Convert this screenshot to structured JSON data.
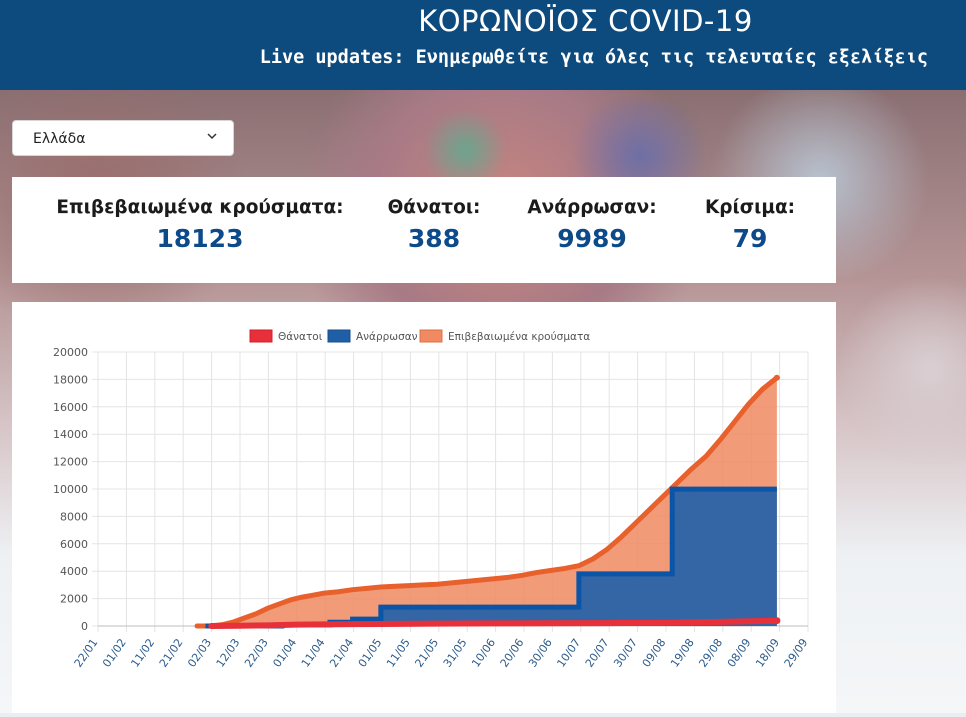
{
  "header": {
    "title": "ΚΟΡΩΝΟΪΟΣ COVID-19",
    "subtitle": "Live updates: Ενημερωθείτε για όλες τις τελευταίες εξελίξεις"
  },
  "country_select": {
    "value": "Ελλάδα"
  },
  "stats": [
    {
      "label": "Επιβεβαιωμένα κρούσματα:",
      "value": "18123"
    },
    {
      "label": "Θάνατοι:",
      "value": "388"
    },
    {
      "label": "Ανάρρωσαν:",
      "value": "9989"
    },
    {
      "label": "Κρίσιμα:",
      "value": "79"
    }
  ],
  "colors": {
    "header_bg": "#0d4a7d",
    "deaths": "#e8303a",
    "recovered": "#1f5fa8",
    "confirmed": "#f08a62",
    "confirmed_line": "#e8602c"
  },
  "chart_data": {
    "type": "area",
    "legend": [
      "Θάνατοι",
      "Ανάρρωσαν",
      "Επιβεβαιωμένα κρούσματα"
    ],
    "legend_position": "top-center",
    "ylim": [
      0,
      20000
    ],
    "yticks": [
      "0",
      "2000",
      "4000",
      "6000",
      "8000",
      "10000",
      "12000",
      "14000",
      "16000",
      "18000",
      "20000"
    ],
    "x_ticks": [
      "22/01",
      "01/02",
      "11/02",
      "21/02",
      "02/03",
      "12/03",
      "22/03",
      "01/04",
      "11/04",
      "21/04",
      "01/05",
      "11/05",
      "21/05",
      "31/05",
      "10/06",
      "20/06",
      "30/06",
      "10/07",
      "20/07",
      "30/07",
      "09/08",
      "19/08",
      "29/08",
      "08/09",
      "18/09",
      "29/09"
    ],
    "x_range_days": [
      0,
      251
    ],
    "series": [
      {
        "name": "Επιβεβαιωμένα κρούσματα",
        "points": [
          [
            0,
            0
          ],
          [
            35,
            0
          ],
          [
            40,
            0
          ],
          [
            44,
            100
          ],
          [
            48,
            300
          ],
          [
            52,
            600
          ],
          [
            56,
            900
          ],
          [
            60,
            1300
          ],
          [
            64,
            1600
          ],
          [
            68,
            1900
          ],
          [
            72,
            2100
          ],
          [
            76,
            2250
          ],
          [
            80,
            2400
          ],
          [
            85,
            2500
          ],
          [
            90,
            2650
          ],
          [
            95,
            2750
          ],
          [
            100,
            2850
          ],
          [
            105,
            2900
          ],
          [
            110,
            2950
          ],
          [
            115,
            3000
          ],
          [
            120,
            3050
          ],
          [
            125,
            3150
          ],
          [
            130,
            3250
          ],
          [
            135,
            3350
          ],
          [
            140,
            3450
          ],
          [
            145,
            3550
          ],
          [
            150,
            3700
          ],
          [
            155,
            3900
          ],
          [
            160,
            4050
          ],
          [
            165,
            4200
          ],
          [
            170,
            4400
          ],
          [
            175,
            4900
          ],
          [
            180,
            5600
          ],
          [
            185,
            6500
          ],
          [
            190,
            7500
          ],
          [
            195,
            8500
          ],
          [
            200,
            9500
          ],
          [
            205,
            10500
          ],
          [
            210,
            11500
          ],
          [
            215,
            12400
          ],
          [
            220,
            13600
          ],
          [
            225,
            14900
          ],
          [
            230,
            16200
          ],
          [
            235,
            17300
          ],
          [
            240,
            18123
          ]
        ]
      },
      {
        "name": "Ανάρρωσαν",
        "points": [
          [
            0,
            0
          ],
          [
            38,
            0
          ],
          [
            40,
            0
          ],
          [
            65,
            0
          ],
          [
            65,
            80
          ],
          [
            82,
            80
          ],
          [
            82,
            270
          ],
          [
            90,
            270
          ],
          [
            90,
            500
          ],
          [
            100,
            500
          ],
          [
            100,
            1374
          ],
          [
            170,
            1374
          ],
          [
            170,
            3804
          ],
          [
            203,
            3804
          ],
          [
            203,
            9989
          ],
          [
            240,
            9989
          ]
        ]
      },
      {
        "name": "Θάνατοι",
        "points": [
          [
            0,
            0
          ],
          [
            40,
            0
          ],
          [
            50,
            15
          ],
          [
            60,
            50
          ],
          [
            70,
            99
          ],
          [
            80,
            120
          ],
          [
            90,
            140
          ],
          [
            100,
            150
          ],
          [
            120,
            175
          ],
          [
            140,
            190
          ],
          [
            160,
            200
          ],
          [
            180,
            210
          ],
          [
            200,
            240
          ],
          [
            220,
            300
          ],
          [
            240,
            388
          ]
        ]
      }
    ]
  }
}
